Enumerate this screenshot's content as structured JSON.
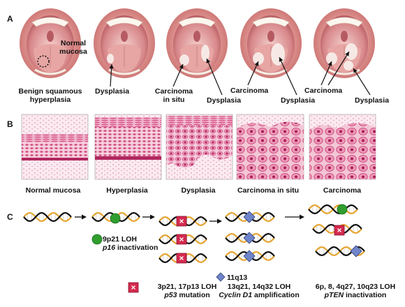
{
  "panels": {
    "a": "A",
    "b": "B",
    "c": "C"
  },
  "row_a": {
    "normal_mucosa": [
      "Normal",
      "mucosa"
    ],
    "benign_hyperplasia": [
      "Benign squamous",
      "hyperplasia"
    ],
    "dysplasia_1": "Dysplasia",
    "carcinoma_in_situ": [
      "Carcinoma",
      "in situ"
    ],
    "dysplasia_2": "Dysplasia",
    "carcinoma_1": "Carcinoma",
    "dysplasia_3": "Dysplasia",
    "carcinoma_2": "Carcinoma",
    "dysplasia_4": "Dysplasia"
  },
  "row_b": [
    "Normal mucosa",
    "Hyperplasia",
    "Dysplasia",
    "Carcinoma in situ",
    "Carcinoma"
  ],
  "row_c": {
    "m1": {
      "line1": "9p21 LOH",
      "gene": "p16",
      "line2": "inactivation"
    },
    "m2": {
      "line1": "3p21, 17p13 LOH",
      "gene": "p53",
      "line2": "mutation"
    },
    "m3": {
      "line0": "11q13",
      "line1": "13q21, 14q32 LOH",
      "gene": "Cyclin D1",
      "line2": "amplification"
    },
    "m4": {
      "line1": "6p, 8, 4q27, 10q23 LOH",
      "gene": "pTEN",
      "line2": "inactivation"
    }
  },
  "colors": {
    "tissue": "#d9467a",
    "marker_green": "#2f9e2f",
    "marker_red": "#d42a4e",
    "marker_blue": "#6f84c9"
  }
}
